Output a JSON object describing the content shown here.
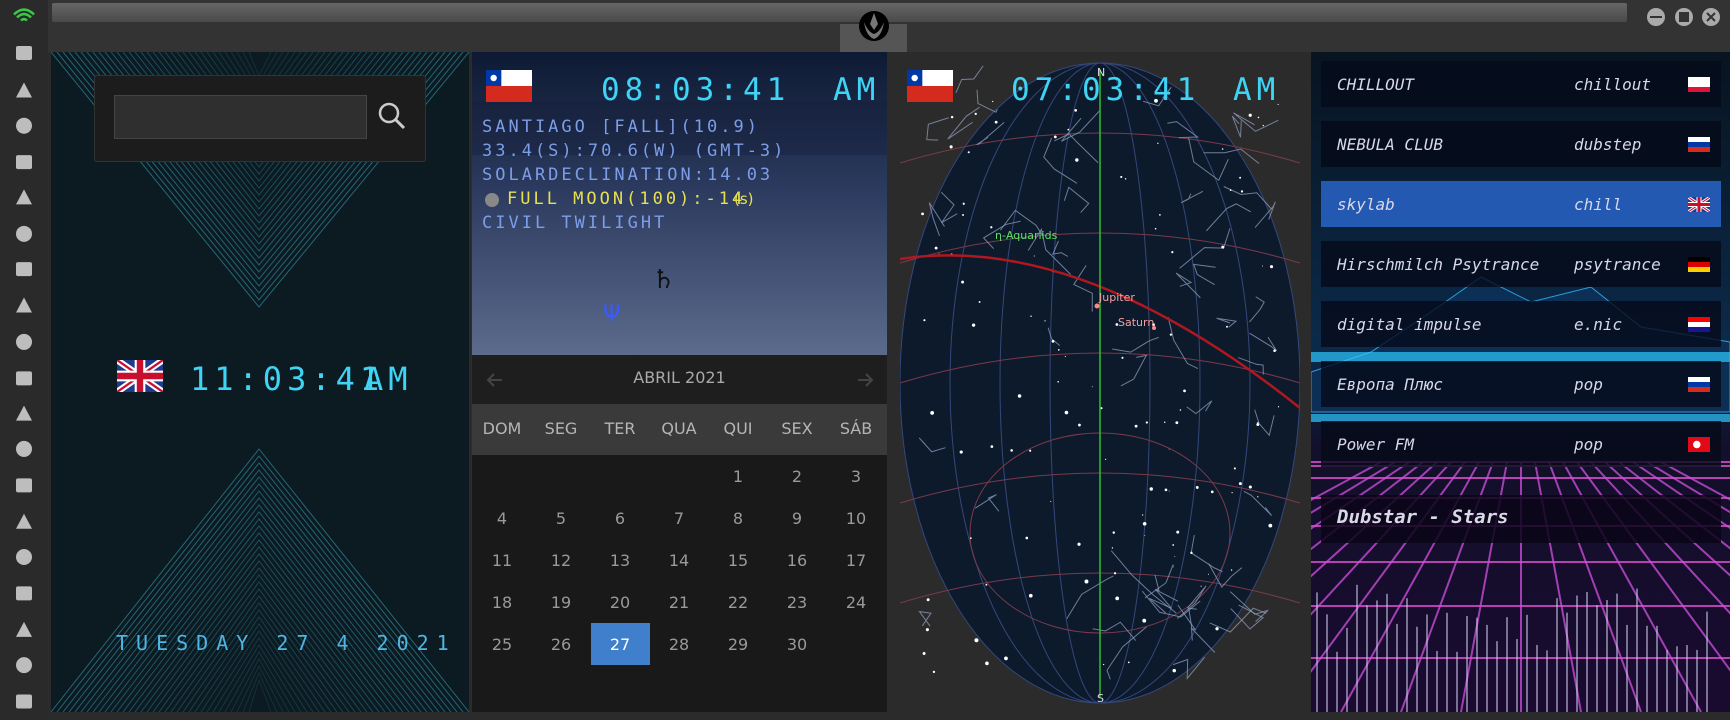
{
  "left_clock": {
    "time": "11:03:41",
    "period": "AM",
    "date": "TUESDAY 27 4 2021"
  },
  "city_clock": {
    "time": "08:03:41",
    "period": "AM",
    "lines": [
      "SANTIAGO [FALL](10.9)",
      "33.4(S):70.6(W) (GMT-3)",
      "SOLARDECLINATION:14.03"
    ],
    "moon": "FULL MOON(100):-14",
    "moon_unit": "(s)",
    "twilight": "CIVIL TWILIGHT",
    "symbols": [
      "♄",
      "Ψ"
    ]
  },
  "calendar": {
    "month": "ABRIL 2021",
    "weekdays": [
      "DOM",
      "SEG",
      "TER",
      "QUA",
      "QUI",
      "SEX",
      "SÁB"
    ],
    "weeks": [
      [
        1,
        2,
        3
      ],
      [
        4,
        5,
        6,
        7,
        8,
        9,
        10
      ],
      [
        11,
        12,
        13,
        14,
        15,
        16,
        17
      ],
      [
        18,
        19,
        20,
        21,
        22,
        23,
        24
      ],
      [
        25,
        26,
        27,
        28,
        29,
        30
      ]
    ],
    "selected_day": 27
  },
  "sky_map": {
    "time": "07:03:41",
    "period": "AM",
    "north": "N",
    "south": "S",
    "labels": [
      "η-Aquariids",
      "Jupiter",
      "Saturn"
    ]
  },
  "radio": {
    "stations": [
      {
        "name": "CHILLOUT",
        "genre": "chillout",
        "selected": false
      },
      {
        "name": "NEBULA CLUB",
        "genre": "dubstep",
        "selected": false
      },
      {
        "name": "skylab",
        "genre": "chill",
        "selected": true
      },
      {
        "name": "Hirschmilch Psytrance",
        "genre": "psytrance",
        "selected": false
      },
      {
        "name": "digital impulse",
        "genre": "e.nic",
        "selected": false
      },
      {
        "name": "Европа Плюс",
        "genre": "pop",
        "selected": false
      },
      {
        "name": "Power FM",
        "genre": "pop",
        "selected": false
      }
    ],
    "now_playing": "Dubstar - Stars"
  }
}
